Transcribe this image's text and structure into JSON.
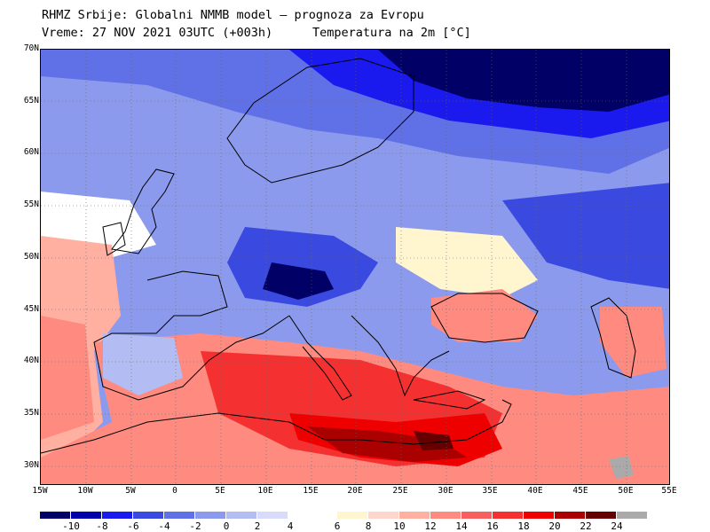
{
  "header": {
    "title": "RHMZ Srbije: Globalni NMMB model — prognoza za Evropu",
    "valid_time": "Vreme: 27 NOV 2021 03UTC (+003h)",
    "variable": "Temperatura na 2m [°C]"
  },
  "map": {
    "lat_labels": [
      "70N",
      "65N",
      "60N",
      "55N",
      "50N",
      "45N",
      "40N",
      "35N",
      "30N"
    ],
    "lon_labels": [
      "15W",
      "10W",
      "5W",
      "0",
      "5E",
      "10E",
      "15E",
      "20E",
      "25E",
      "30E",
      "35E",
      "40E",
      "45E",
      "50E",
      "55E"
    ]
  },
  "colorbar": {
    "labels": [
      "-10",
      "-8",
      "-6",
      "-4",
      "-2",
      "0",
      "2",
      "4",
      "6",
      "8",
      "10",
      "12",
      "14",
      "16",
      "18",
      "20",
      "22",
      "24"
    ],
    "colors": [
      "#000066",
      "#0000aa",
      "#1a1aee",
      "#3a4ae0",
      "#6070e6",
      "#8c9aee",
      "#b4bcf4",
      "#d8dcfa",
      "#ffffff",
      "#fff6d0",
      "#ffd6cc",
      "#ffb0a0",
      "#ff8a80",
      "#f86060",
      "#f43030",
      "#ee0000",
      "#aa0000",
      "#660000",
      "#aaaaaa"
    ]
  }
}
